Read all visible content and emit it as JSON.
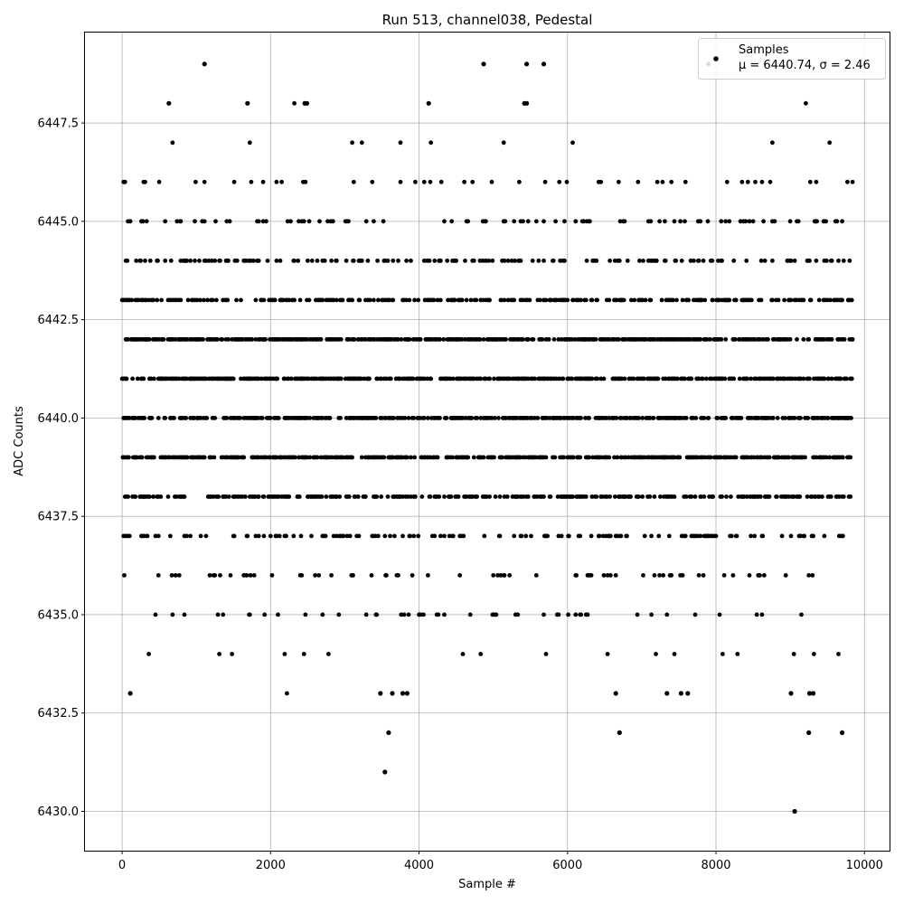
{
  "chart_data": {
    "type": "scatter",
    "title": "Run 513, channel038, Pedestal",
    "xlabel": "Sample #",
    "ylabel": "ADC Counts",
    "xlim": [
      -500,
      10350
    ],
    "ylim": [
      6429.0,
      6449.8
    ],
    "x_ticks": [
      0,
      2000,
      4000,
      6000,
      8000,
      10000
    ],
    "x_tick_labels": [
      "0",
      "2000",
      "4000",
      "6000",
      "8000",
      "10000"
    ],
    "y_ticks": [
      6430.0,
      6432.5,
      6435.0,
      6437.5,
      6440.0,
      6442.5,
      6445.0,
      6447.5
    ],
    "y_tick_labels": [
      "6430.0",
      "6432.5",
      "6435.0",
      "6437.5",
      "6440.0",
      "6442.5",
      "6445.0",
      "6447.5"
    ],
    "grid": true,
    "legend_position": "top-right",
    "series": [
      {
        "name": "Samples",
        "stats_label": "μ = 6440.74, σ = 2.46",
        "color": "#000000",
        "x_range": [
          0,
          9840
        ],
        "level_density": {
          "6442": 0.44,
          "6441": 0.44,
          "6440": 0.42,
          "6439": 0.4,
          "6438": 0.34,
          "6443": 0.28,
          "6444": 0.14,
          "6437": 0.13,
          "6445": 0.1,
          "6436": 0.07,
          "6446": 0.05,
          "6435": 0.04,
          "6447": 0.016,
          "6434": 0.011,
          "6433": 0.006,
          "6448": 0.002,
          "6449": 0.002
        },
        "outliers": [
          {
            "x": 110,
            "y": 6433
          },
          {
            "x": 3480,
            "y": 6433
          },
          {
            "x": 3640,
            "y": 6433
          },
          {
            "x": 3780,
            "y": 6433
          },
          {
            "x": 3840,
            "y": 6433
          },
          {
            "x": 6650,
            "y": 6433
          },
          {
            "x": 7340,
            "y": 6433
          },
          {
            "x": 7530,
            "y": 6433
          },
          {
            "x": 7620,
            "y": 6433
          },
          {
            "x": 9010,
            "y": 6433
          },
          {
            "x": 9260,
            "y": 6433
          },
          {
            "x": 9310,
            "y": 6433
          },
          {
            "x": 3590,
            "y": 6432
          },
          {
            "x": 6700,
            "y": 6432
          },
          {
            "x": 9250,
            "y": 6432
          },
          {
            "x": 9700,
            "y": 6432
          },
          {
            "x": 3540,
            "y": 6431
          },
          {
            "x": 9060,
            "y": 6430
          },
          {
            "x": 630,
            "y": 6448
          },
          {
            "x": 1690,
            "y": 6448
          },
          {
            "x": 2460,
            "y": 6448
          },
          {
            "x": 2490,
            "y": 6448
          },
          {
            "x": 4130,
            "y": 6448
          },
          {
            "x": 5420,
            "y": 6448
          },
          {
            "x": 5450,
            "y": 6448
          },
          {
            "x": 1110,
            "y": 6449
          },
          {
            "x": 4870,
            "y": 6449
          },
          {
            "x": 5450,
            "y": 6449
          },
          {
            "x": 5680,
            "y": 6449
          }
        ]
      }
    ]
  }
}
